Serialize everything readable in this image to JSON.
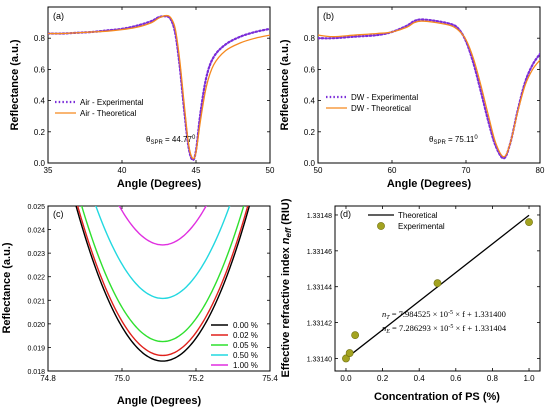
{
  "chart_data": [
    {
      "id": "a",
      "panel_label": "(a)",
      "type": "line",
      "xlabel": "Angle (Degrees)",
      "ylabel": "Reflectance (a.u.)",
      "xlim": [
        35,
        50
      ],
      "ylim": [
        0.0,
        1.0
      ],
      "xticks": [
        "35",
        "40",
        "45",
        "50"
      ],
      "yticks": [
        "0.0",
        "0.2",
        "0.4",
        "0.6",
        "0.8"
      ],
      "annotation": "θSPR = 44.77°",
      "annotation_parts": {
        "theta": "θ",
        "sub": "SPR",
        "rest": " = 44.77",
        "sup": "0"
      },
      "legend_position": "left",
      "series": [
        {
          "name": "Air - Experimental",
          "color": "#7a2cd8",
          "style": "dotted",
          "x": [
            35,
            36,
            37,
            38,
            39,
            40,
            41,
            42,
            42.5,
            43,
            43.3,
            43.6,
            43.9,
            44.2,
            44.5,
            44.77,
            45.0,
            45.3,
            45.7,
            46.2,
            47,
            48,
            49,
            50
          ],
          "y": [
            0.83,
            0.83,
            0.835,
            0.84,
            0.85,
            0.86,
            0.88,
            0.91,
            0.935,
            0.94,
            0.92,
            0.83,
            0.62,
            0.34,
            0.1,
            0.02,
            0.08,
            0.32,
            0.55,
            0.68,
            0.76,
            0.81,
            0.84,
            0.86
          ]
        },
        {
          "name": "Air - Theoretical",
          "color": "#f5891f",
          "style": "solid",
          "x": [
            35,
            36,
            37,
            38,
            39,
            40,
            41,
            42,
            42.5,
            43,
            43.3,
            43.6,
            43.9,
            44.2,
            44.5,
            44.77,
            45.0,
            45.3,
            45.7,
            46.2,
            47,
            48,
            49,
            50
          ],
          "y": [
            0.83,
            0.83,
            0.835,
            0.84,
            0.845,
            0.855,
            0.87,
            0.9,
            0.93,
            0.945,
            0.93,
            0.86,
            0.66,
            0.38,
            0.12,
            0.03,
            0.07,
            0.27,
            0.49,
            0.63,
            0.72,
            0.77,
            0.8,
            0.82
          ]
        }
      ]
    },
    {
      "id": "b",
      "panel_label": "(b)",
      "type": "line",
      "xlabel": "Angle (Degrees)",
      "ylabel": "Reflectance (a.u.)",
      "xlim": [
        50,
        80
      ],
      "ylim": [
        0.0,
        1.0
      ],
      "xticks": [
        "50",
        "60",
        "70",
        "80"
      ],
      "yticks": [
        "0.0",
        "0.2",
        "0.4",
        "0.6",
        "0.8"
      ],
      "annotation": "θSPR = 75.11°",
      "annotation_parts": {
        "theta": "θ",
        "sub": "SPR",
        "rest": " = 75.11",
        "sup": "0"
      },
      "legend_position": "left",
      "series": [
        {
          "name": "DW - Experimental",
          "color": "#7a2cd8",
          "style": "dotted",
          "x": [
            50,
            52,
            55,
            58,
            60,
            62,
            63,
            64,
            66,
            68,
            69,
            70,
            71,
            72,
            73,
            74,
            75.11,
            76,
            77,
            78,
            79,
            80
          ],
          "y": [
            0.8,
            0.8,
            0.81,
            0.82,
            0.84,
            0.88,
            0.91,
            0.92,
            0.91,
            0.89,
            0.86,
            0.78,
            0.64,
            0.46,
            0.27,
            0.11,
            0.03,
            0.13,
            0.34,
            0.52,
            0.63,
            0.7
          ]
        },
        {
          "name": "DW - Theoretical",
          "color": "#f5891f",
          "style": "solid",
          "x": [
            50,
            52,
            55,
            58,
            60,
            62,
            63,
            64,
            66,
            68,
            69,
            70,
            71,
            72,
            73,
            74,
            75.11,
            76,
            77,
            78,
            79,
            80
          ],
          "y": [
            0.82,
            0.81,
            0.82,
            0.83,
            0.84,
            0.87,
            0.9,
            0.91,
            0.9,
            0.88,
            0.85,
            0.79,
            0.67,
            0.5,
            0.31,
            0.13,
            0.04,
            0.13,
            0.33,
            0.5,
            0.6,
            0.66
          ]
        }
      ]
    },
    {
      "id": "c",
      "panel_label": "(c)",
      "type": "line",
      "xlabel": "Angle (Degrees)",
      "ylabel": "Reflectance (a.u.)",
      "xlim": [
        74.8,
        75.4
      ],
      "ylim": [
        0.018,
        0.025
      ],
      "xticks": [
        "74.8",
        "75.0",
        "75.2",
        "75.4"
      ],
      "yticks": [
        "0.018",
        "0.019",
        "0.020",
        "0.021",
        "0.022",
        "0.023",
        "0.024",
        "0.025"
      ],
      "legend_position": "lower-right",
      "center": 75.11,
      "curvature": 0.12,
      "series": [
        {
          "name": "0.00 %",
          "color": "#000000",
          "min": 0.01842
        },
        {
          "name": "0.02 %",
          "color": "#e0201b",
          "min": 0.01866
        },
        {
          "name": "0.05 %",
          "color": "#2fe02f",
          "min": 0.01925
        },
        {
          "name": "0.50 %",
          "color": "#22d8e0",
          "min": 0.02108
        },
        {
          "name": "1.00 %",
          "color": "#e02fe0",
          "min": 0.02335
        }
      ]
    },
    {
      "id": "d",
      "panel_label": "(d)",
      "type": "scatter",
      "xlabel": "Concentration of PS (%)",
      "ylabel": "Effective refractive index n_eff (RIU)",
      "ylabel_parts": {
        "pre": "Effective refractive index ",
        "n": "n",
        "sub": "eff",
        "post": " (RIU)"
      },
      "xlim": [
        -0.06,
        1.06
      ],
      "ylim": [
        1.331393,
        1.331485
      ],
      "xticks": [
        "0.0",
        "0.2",
        "0.4",
        "0.6",
        "0.8",
        "1.0"
      ],
      "yticks": [
        "1.33140",
        "1.33142",
        "1.33144",
        "1.33146",
        "1.33148"
      ],
      "legend_position": "top",
      "series": [
        {
          "name": "Theoretical",
          "type": "line",
          "color": "#000000",
          "x": [
            0,
            1.0
          ],
          "y": [
            1.3314,
            1.33147984
          ]
        },
        {
          "name": "Experimental",
          "type": "scatter",
          "color": "#a3a320",
          "x": [
            0.0,
            0.02,
            0.05,
            0.5,
            1.0
          ],
          "y": [
            1.3314,
            1.331403,
            1.331413,
            1.331442,
            1.331476
          ]
        }
      ],
      "equations": [
        {
          "var": "n",
          "sub": "T",
          "text": " = 7.984525 × 10",
          "sup": "-5",
          "tail": " × f + 1.331400"
        },
        {
          "var": "n",
          "sub": "E",
          "text": " = 7.286293 × 10",
          "sup": "-5",
          "tail": " × f + 1.331404"
        }
      ]
    }
  ]
}
